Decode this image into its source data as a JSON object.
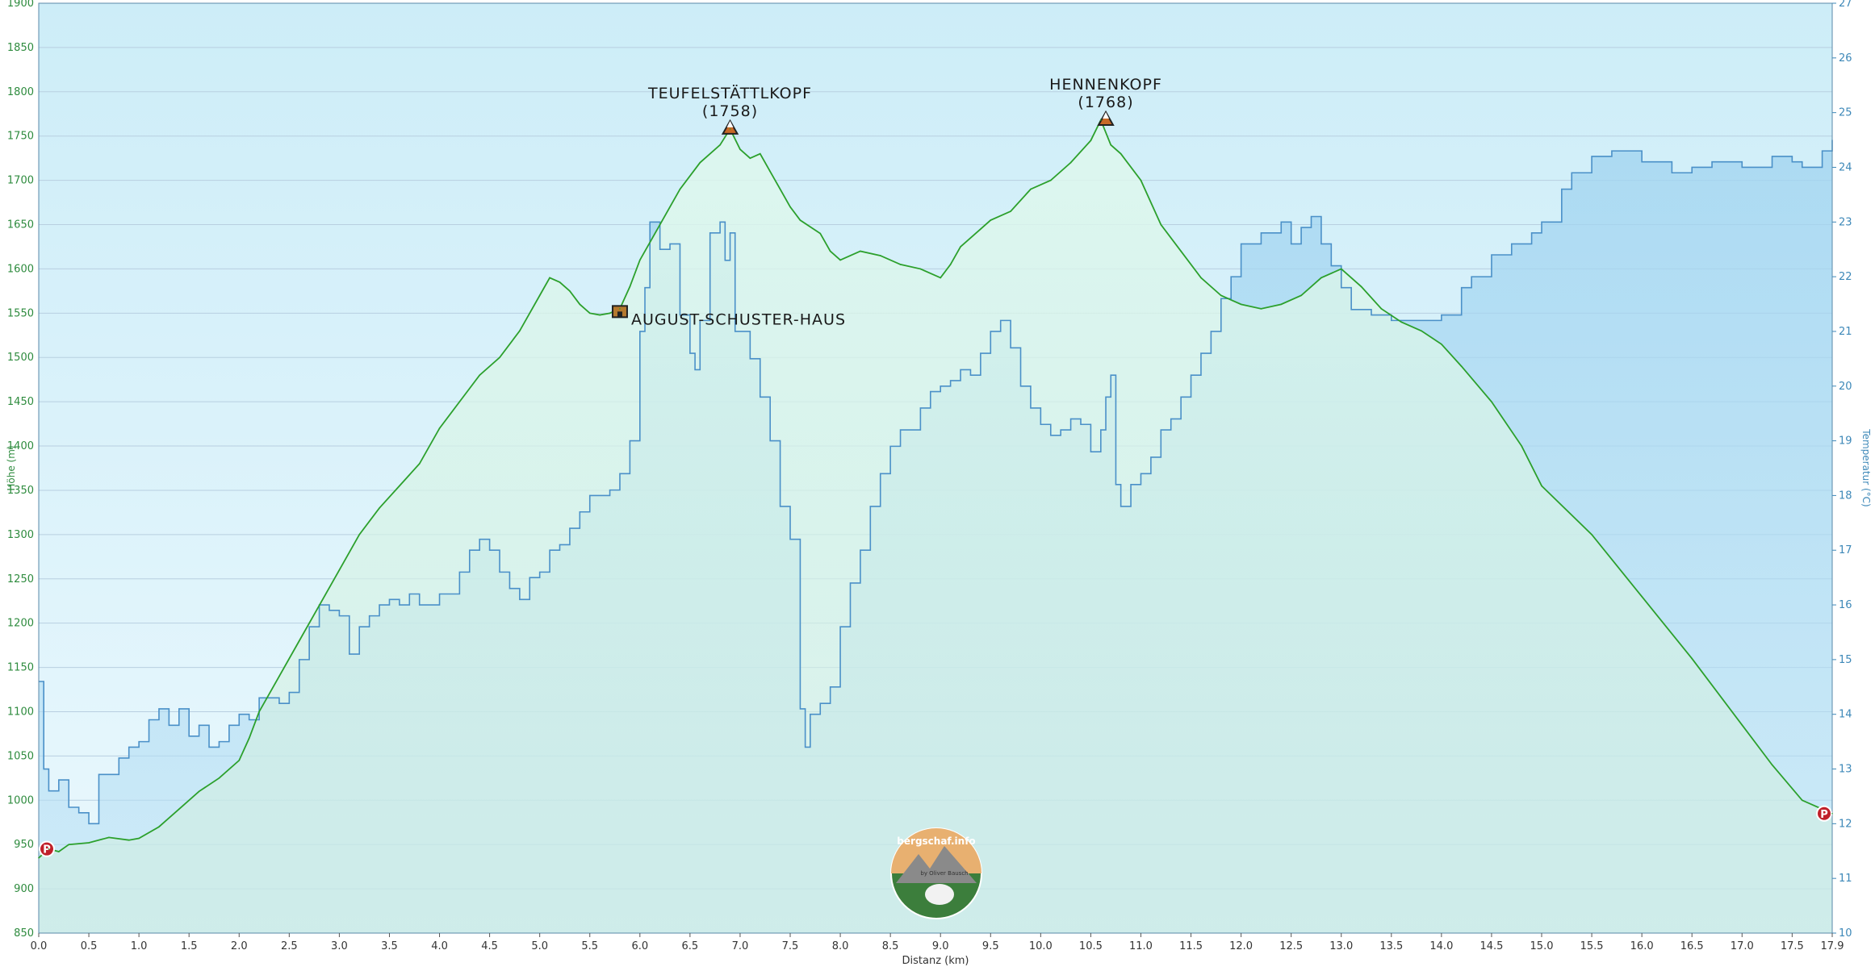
{
  "chart_data": {
    "type": "area",
    "xlabel": "Distanz  (km)",
    "ylabel_left": "Höhe (m)",
    "ylabel_right": "Temperatur (°C)",
    "xlim": [
      0,
      17.9
    ],
    "ylim_left": [
      850,
      1900
    ],
    "ylim_right": [
      10,
      27
    ],
    "grid": true,
    "x_ticks": [
      "0.0",
      "0.5",
      "1.0",
      "1.5",
      "2.0",
      "2.5",
      "3.0",
      "3.5",
      "4.0",
      "4.5",
      "5.0",
      "5.5",
      "6.0",
      "6.5",
      "7.0",
      "7.5",
      "8.0",
      "8.5",
      "9.0",
      "9.5",
      "10.0",
      "10.5",
      "11.0",
      "11.5",
      "12.0",
      "12.5",
      "13.0",
      "13.5",
      "14.0",
      "14.5",
      "15.0",
      "15.5",
      "16.0",
      "16.5",
      "17.0",
      "17.5",
      "17.9"
    ],
    "y_ticks_left": [
      "850",
      "900",
      "950",
      "1000",
      "1050",
      "1100",
      "1150",
      "1200",
      "1250",
      "1300",
      "1350",
      "1400",
      "1450",
      "1500",
      "1550",
      "1600",
      "1650",
      "1700",
      "1750",
      "1800",
      "1850",
      "1900"
    ],
    "y_ticks_right": [
      "10",
      "11",
      "12",
      "13",
      "14",
      "15",
      "16",
      "17",
      "18",
      "19",
      "20",
      "21",
      "22",
      "23",
      "24",
      "25",
      "26",
      "27"
    ],
    "series": [
      {
        "name": "Höhe",
        "axis": "left",
        "color": "#2ca02c",
        "x": [
          0.0,
          0.1,
          0.2,
          0.3,
          0.5,
          0.7,
          0.9,
          1.0,
          1.2,
          1.4,
          1.6,
          1.8,
          2.0,
          2.1,
          2.2,
          2.4,
          2.6,
          2.8,
          3.0,
          3.2,
          3.4,
          3.6,
          3.8,
          4.0,
          4.2,
          4.4,
          4.6,
          4.8,
          5.0,
          5.1,
          5.2,
          5.3,
          5.4,
          5.5,
          5.6,
          5.7,
          5.8,
          5.9,
          6.0,
          6.2,
          6.4,
          6.6,
          6.8,
          6.9,
          7.0,
          7.1,
          7.2,
          7.3,
          7.4,
          7.5,
          7.6,
          7.8,
          7.9,
          8.0,
          8.2,
          8.4,
          8.6,
          8.8,
          9.0,
          9.1,
          9.2,
          9.4,
          9.5,
          9.7,
          9.9,
          10.1,
          10.3,
          10.5,
          10.6,
          10.7,
          10.8,
          11.0,
          11.2,
          11.4,
          11.6,
          11.8,
          12.0,
          12.2,
          12.4,
          12.6,
          12.8,
          13.0,
          13.2,
          13.4,
          13.6,
          13.8,
          14.0,
          14.2,
          14.5,
          14.8,
          15.0,
          15.5,
          16.0,
          16.5,
          17.0,
          17.3,
          17.6,
          17.9
        ],
        "y": [
          935,
          945,
          942,
          950,
          952,
          958,
          955,
          957,
          970,
          990,
          1010,
          1025,
          1045,
          1070,
          1100,
          1140,
          1180,
          1220,
          1260,
          1300,
          1330,
          1355,
          1380,
          1420,
          1450,
          1480,
          1500,
          1530,
          1570,
          1590,
          1585,
          1575,
          1560,
          1550,
          1548,
          1550,
          1555,
          1580,
          1610,
          1650,
          1690,
          1720,
          1740,
          1758,
          1735,
          1725,
          1730,
          1710,
          1690,
          1670,
          1655,
          1640,
          1620,
          1610,
          1620,
          1615,
          1605,
          1600,
          1590,
          1605,
          1625,
          1645,
          1655,
          1665,
          1690,
          1700,
          1720,
          1745,
          1768,
          1740,
          1730,
          1700,
          1650,
          1620,
          1590,
          1570,
          1560,
          1555,
          1560,
          1570,
          1590,
          1600,
          1580,
          1555,
          1540,
          1530,
          1515,
          1490,
          1450,
          1400,
          1355,
          1300,
          1230,
          1160,
          1085,
          1040,
          1000,
          985
        ]
      },
      {
        "name": "Temperatur",
        "axis": "right",
        "color": "#4a90c8",
        "x": [
          0.0,
          0.05,
          0.1,
          0.2,
          0.3,
          0.4,
          0.5,
          0.6,
          0.8,
          0.9,
          1.0,
          1.1,
          1.2,
          1.3,
          1.4,
          1.5,
          1.6,
          1.7,
          1.8,
          1.9,
          2.0,
          2.1,
          2.2,
          2.4,
          2.5,
          2.6,
          2.7,
          2.8,
          2.9,
          3.0,
          3.1,
          3.2,
          3.3,
          3.4,
          3.5,
          3.6,
          3.7,
          3.8,
          4.0,
          4.2,
          4.3,
          4.4,
          4.5,
          4.6,
          4.7,
          4.8,
          4.9,
          5.0,
          5.1,
          5.2,
          5.3,
          5.4,
          5.5,
          5.6,
          5.7,
          5.8,
          5.9,
          6.0,
          6.05,
          6.1,
          6.2,
          6.3,
          6.4,
          6.5,
          6.55,
          6.6,
          6.7,
          6.8,
          6.85,
          6.9,
          6.95,
          7.0,
          7.1,
          7.2,
          7.3,
          7.4,
          7.5,
          7.6,
          7.65,
          7.7,
          7.8,
          7.9,
          8.0,
          8.1,
          8.2,
          8.3,
          8.4,
          8.5,
          8.6,
          8.8,
          8.9,
          9.0,
          9.1,
          9.2,
          9.3,
          9.4,
          9.5,
          9.6,
          9.7,
          9.8,
          9.9,
          10.0,
          10.1,
          10.2,
          10.3,
          10.4,
          10.5,
          10.6,
          10.65,
          10.7,
          10.75,
          10.8,
          10.9,
          11.0,
          11.1,
          11.2,
          11.3,
          11.4,
          11.5,
          11.6,
          11.7,
          11.8,
          11.9,
          12.0,
          12.2,
          12.4,
          12.5,
          12.6,
          12.7,
          12.8,
          12.9,
          13.0,
          13.1,
          13.3,
          13.5,
          14.0,
          14.2,
          14.3,
          14.5,
          14.7,
          14.9,
          15.0,
          15.2,
          15.3,
          15.5,
          15.7,
          15.9,
          16.0,
          16.3,
          16.5,
          16.7,
          17.0,
          17.3,
          17.5,
          17.6,
          17.8,
          17.9
        ],
        "y": [
          14.6,
          13.0,
          12.6,
          12.8,
          12.3,
          12.2,
          12.0,
          12.9,
          13.2,
          13.4,
          13.5,
          13.9,
          14.1,
          13.8,
          14.1,
          13.6,
          13.8,
          13.4,
          13.5,
          13.8,
          14.0,
          13.9,
          14.3,
          14.2,
          14.4,
          15.0,
          15.6,
          16.0,
          15.9,
          15.8,
          15.1,
          15.6,
          15.8,
          16.0,
          16.1,
          16.0,
          16.2,
          16.0,
          16.2,
          16.6,
          17.0,
          17.2,
          17.0,
          16.6,
          16.3,
          16.1,
          16.5,
          16.6,
          17.0,
          17.1,
          17.4,
          17.7,
          18.0,
          18.0,
          18.1,
          18.4,
          19.0,
          21.0,
          21.8,
          23.0,
          22.5,
          22.6,
          21.3,
          20.6,
          20.3,
          21.2,
          22.8,
          23.0,
          22.3,
          22.8,
          21.0,
          21.0,
          20.5,
          19.8,
          19.0,
          17.8,
          17.2,
          14.1,
          13.4,
          14.0,
          14.2,
          14.5,
          15.6,
          16.4,
          17.0,
          17.8,
          18.4,
          18.9,
          19.2,
          19.6,
          19.9,
          20.0,
          20.1,
          20.3,
          20.2,
          20.6,
          21.0,
          21.2,
          20.7,
          20.0,
          19.6,
          19.3,
          19.1,
          19.2,
          19.4,
          19.3,
          18.8,
          19.2,
          19.8,
          20.2,
          18.2,
          17.8,
          18.2,
          18.4,
          18.7,
          19.2,
          19.4,
          19.8,
          20.2,
          20.6,
          21.0,
          21.6,
          22.0,
          22.6,
          22.8,
          23.0,
          22.6,
          22.9,
          23.1,
          22.6,
          22.2,
          21.8,
          21.4,
          21.3,
          21.2,
          21.3,
          21.8,
          22.0,
          22.4,
          22.6,
          22.8,
          23.0,
          23.6,
          23.9,
          24.2,
          24.3,
          24.3,
          24.1,
          23.9,
          24.0,
          24.1,
          24.0,
          24.2,
          24.1,
          24.0,
          24.3,
          24.5
        ]
      }
    ],
    "annotations": [
      {
        "type": "peak",
        "name": "TEUFELSTÄTTLKOPF",
        "elevation": "(1758)",
        "x": 6.9,
        "y": 1758
      },
      {
        "type": "peak",
        "name": "HENNENKOPF",
        "elevation": "(1768)",
        "x": 10.65,
        "y": 1768
      },
      {
        "type": "hut",
        "name": "AUGUST-SCHUSTER-HAUS",
        "x": 5.8,
        "y": 1550
      },
      {
        "type": "parking",
        "name": "P",
        "x": 0.0,
        "y": 945
      },
      {
        "type": "parking",
        "name": "P",
        "x": 17.9,
        "y": 985
      }
    ]
  },
  "logo": {
    "text": "bergschaf.info",
    "byline": "by Oliver Bausch",
    "colors": {
      "top": "#e8b070",
      "bottom": "#3c7e3c",
      "mountain": "#8a8a8a"
    }
  },
  "colors": {
    "elevation_line": "#2ca02c",
    "elevation_fill": "#d6f6ea",
    "temperature_line": "#4a90c8",
    "temperature_fill": "#a9d7f0",
    "background_top": "#d1eef8",
    "background_bottom": "#e8f7fc",
    "grid": "#b8cfe0"
  }
}
